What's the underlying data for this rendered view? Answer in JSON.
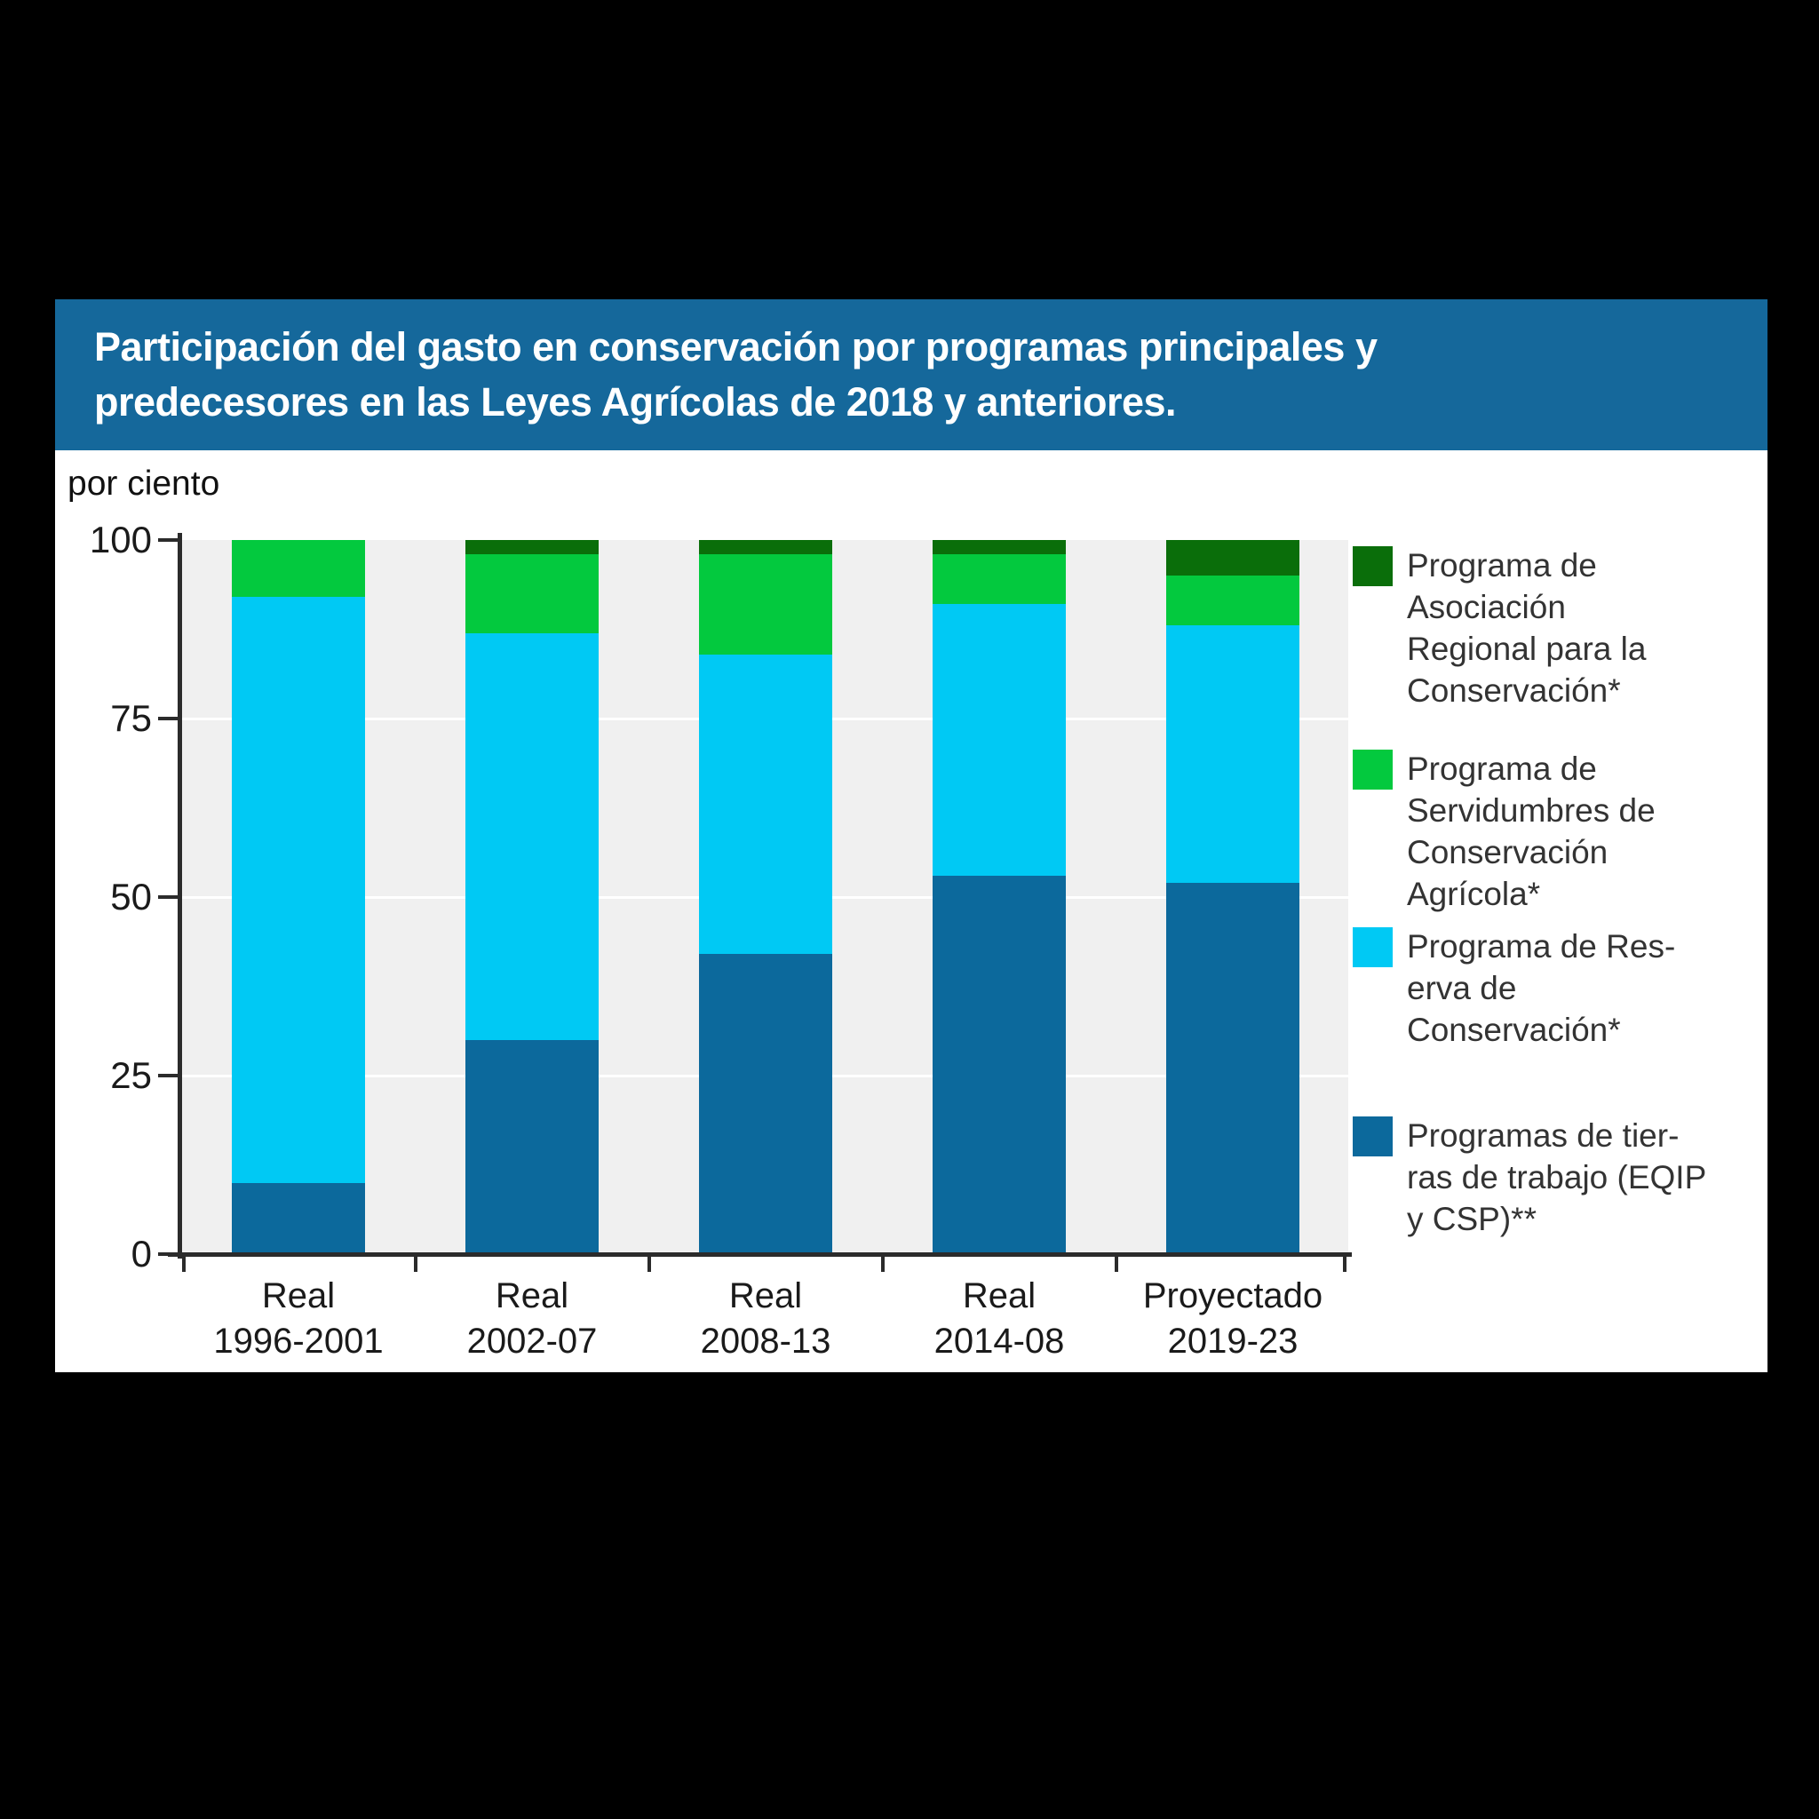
{
  "title": {
    "line1": "Participación del gasto en conservación por programas principales y",
    "line2": "predecesores en las Leyes Agrícolas de 2018 y anteriores."
  },
  "axis_unit_label": "por ciento",
  "colors": {
    "page_bg": "#000000",
    "card_bg": "#ffffff",
    "title_bar": "#15689b",
    "title_text": "#ffffff",
    "plot_bg": "#f0f0f0",
    "gridline": "#ffffff",
    "axis": "#2b2b2b",
    "text": "#1a1a1a",
    "working_lands": "#0c699c",
    "crp": "#00c9f4",
    "easements": "#03c93e",
    "rcpp": "#0a6e0a"
  },
  "chart_data": {
    "type": "bar",
    "stacked": true,
    "title": "Participación del gasto en conservación por programas principales y predecesores en las Leyes Agrícolas de 2018 y anteriores.",
    "ylabel": "por ciento",
    "ylim": [
      0,
      100
    ],
    "yticks": [
      0,
      25,
      50,
      75,
      100
    ],
    "grid": "horizontal white lines at 25/50/75",
    "legend_position": "right",
    "categories": [
      {
        "line1": "Real",
        "line2": "1996-2001"
      },
      {
        "line1": "Real",
        "line2": "2002-07"
      },
      {
        "line1": "Real",
        "line2": "2008-13"
      },
      {
        "line1": "Real",
        "line2": "2014-08"
      },
      {
        "line1": "Proyectado",
        "line2": "2019-23"
      }
    ],
    "series": [
      {
        "name": "Programas de tierras de trabajo (EQIP y CSP)**",
        "color_key": "working_lands",
        "values": [
          10,
          30,
          42,
          53,
          52
        ]
      },
      {
        "name": "Programa de Reserva de Conservación*",
        "color_key": "crp",
        "values": [
          82,
          57,
          42,
          38,
          36
        ]
      },
      {
        "name": "Programa de Servidumbres de Conservación Agrícola*",
        "color_key": "easements",
        "values": [
          8,
          11,
          14,
          7,
          7
        ]
      },
      {
        "name": "Programa de Asociación Regional para la Conservación*",
        "color_key": "rcpp",
        "values": [
          0,
          2,
          2,
          2,
          5
        ]
      }
    ]
  },
  "legend": {
    "entries": [
      {
        "color_key": "rcpp",
        "lines": [
          "Programa de",
          "Asociación",
          "Regional para la",
          "Conservación*"
        ]
      },
      {
        "color_key": "easements",
        "lines": [
          "Programa de",
          "Servidumbres de",
          "Conservación",
          "Agrícola*"
        ]
      },
      {
        "color_key": "crp",
        "lines": [
          "Programa de Res-",
          "erva de",
          "Conservación*"
        ]
      },
      {
        "color_key": "working_lands",
        "lines": [
          "Programas de tier-",
          "ras de trabajo (EQIP",
          "y CSP)**"
        ]
      }
    ]
  }
}
